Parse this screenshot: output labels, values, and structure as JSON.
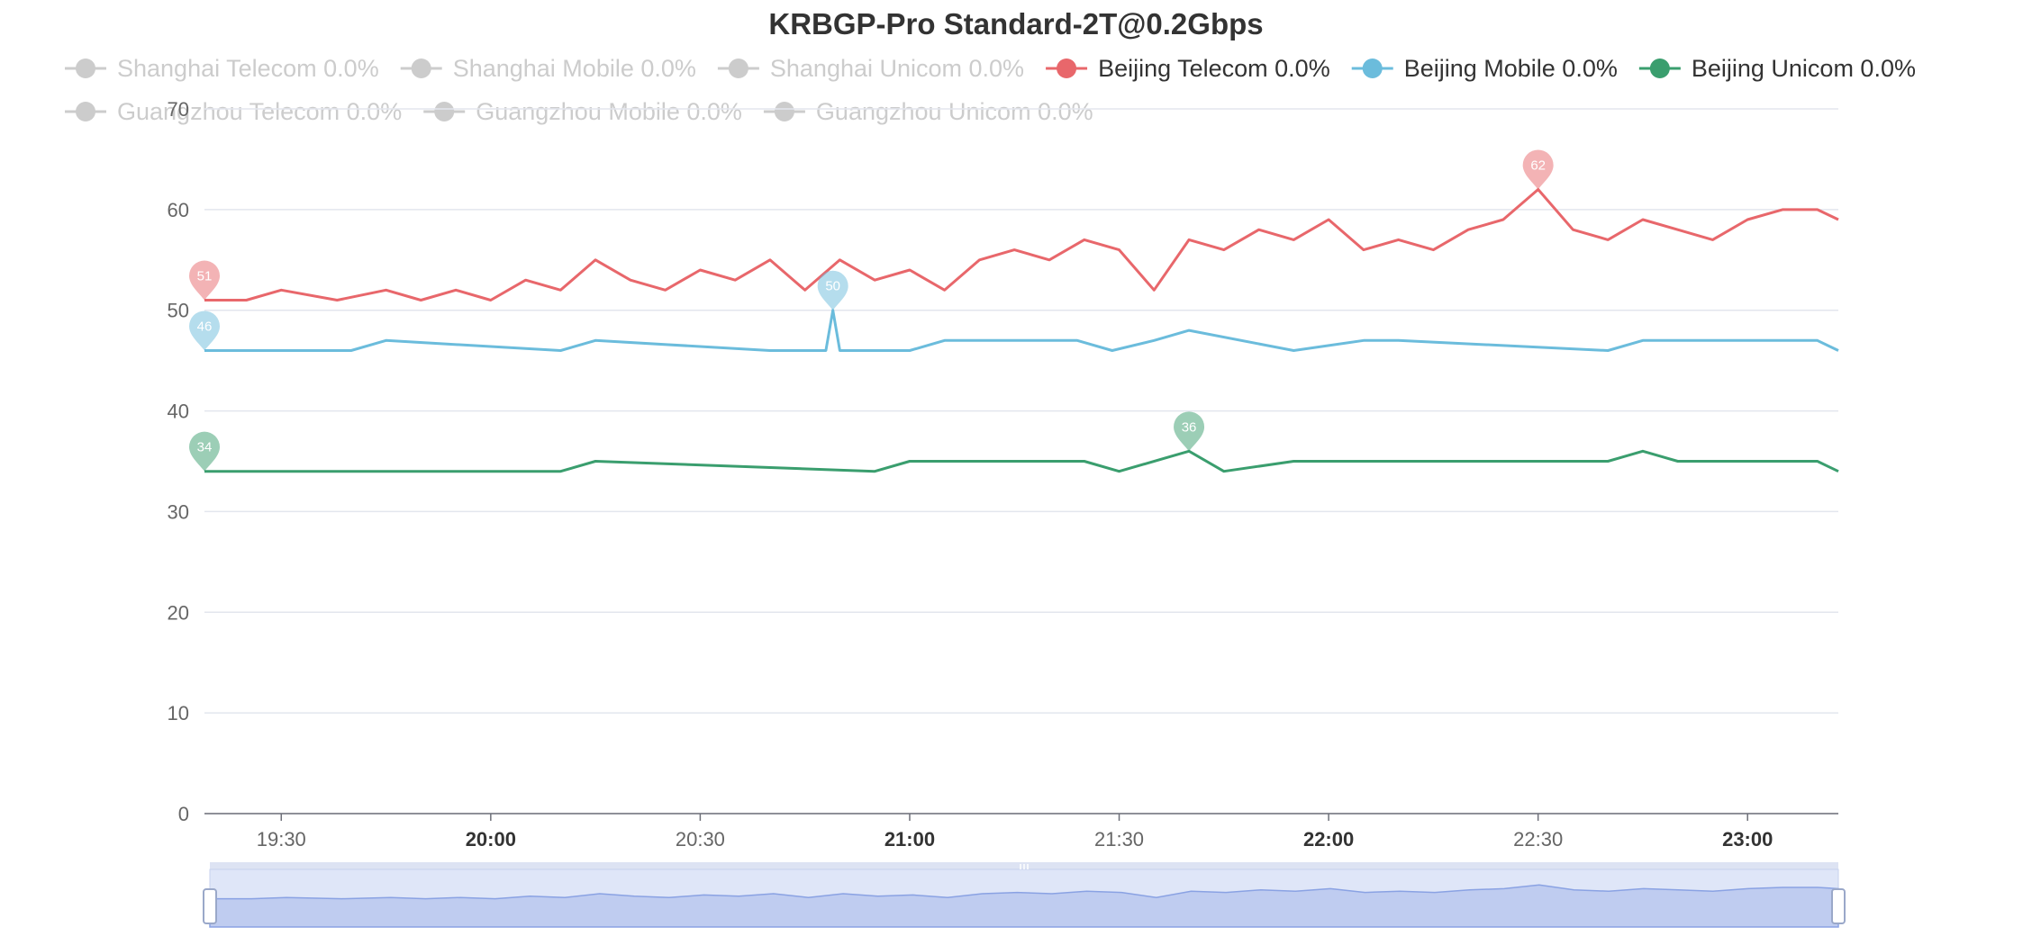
{
  "chart_data": {
    "type": "line",
    "title": "KRBGP-Pro Standard-2T@0.2Gbps",
    "xlabel": "",
    "ylabel": "",
    "ylim": [
      0,
      70
    ],
    "yticks": [
      0,
      10,
      20,
      30,
      40,
      50,
      60,
      70
    ],
    "x_range": [
      "19:19",
      "23:13"
    ],
    "xticks": [
      {
        "label": "19:30",
        "bold": false
      },
      {
        "label": "20:00",
        "bold": true
      },
      {
        "label": "20:30",
        "bold": false
      },
      {
        "label": "21:00",
        "bold": true
      },
      {
        "label": "21:30",
        "bold": false
      },
      {
        "label": "22:00",
        "bold": true
      },
      {
        "label": "22:30",
        "bold": false
      },
      {
        "label": "23:00",
        "bold": true
      }
    ],
    "grid": true,
    "legend_position": "top",
    "legend": [
      {
        "name": "Shanghai Telecom 0.0%",
        "color": "#cccccc",
        "active": false
      },
      {
        "name": "Shanghai Mobile 0.0%",
        "color": "#cccccc",
        "active": false
      },
      {
        "name": "Shanghai Unicom 0.0%",
        "color": "#cccccc",
        "active": false
      },
      {
        "name": "Beijing Telecom 0.0%",
        "color": "#e8676b",
        "active": true
      },
      {
        "name": "Beijing Mobile 0.0%",
        "color": "#6bbcdc",
        "active": true
      },
      {
        "name": "Beijing Unicom 0.0%",
        "color": "#3a9e6e",
        "active": true
      },
      {
        "name": "Guangzhou Telecom 0.0%",
        "color": "#cccccc",
        "active": false
      },
      {
        "name": "Guangzhou Mobile 0.0%",
        "color": "#cccccc",
        "active": false
      },
      {
        "name": "Guangzhou Unicom 0.0%",
        "color": "#cccccc",
        "active": false
      }
    ],
    "series": [
      {
        "name": "Beijing Telecom 0.0%",
        "color": "#e8676b",
        "x": [
          "19:19",
          "19:25",
          "19:30",
          "19:38",
          "19:45",
          "19:50",
          "19:55",
          "20:00",
          "20:05",
          "20:10",
          "20:15",
          "20:20",
          "20:25",
          "20:30",
          "20:35",
          "20:40",
          "20:45",
          "20:50",
          "20:55",
          "21:00",
          "21:05",
          "21:10",
          "21:15",
          "21:20",
          "21:25",
          "21:30",
          "21:35",
          "21:40",
          "21:45",
          "21:50",
          "21:55",
          "22:00",
          "22:05",
          "22:10",
          "22:15",
          "22:20",
          "22:25",
          "22:30",
          "22:35",
          "22:40",
          "22:45",
          "22:50",
          "22:55",
          "23:00",
          "23:05",
          "23:10",
          "23:13"
        ],
        "values": [
          51,
          51,
          52,
          51,
          52,
          51,
          52,
          51,
          53,
          52,
          55,
          53,
          52,
          54,
          53,
          55,
          52,
          55,
          53,
          54,
          52,
          55,
          56,
          55,
          57,
          56,
          52,
          57,
          56,
          58,
          57,
          59,
          56,
          57,
          56,
          58,
          59,
          62,
          58,
          57,
          59,
          58,
          57,
          59,
          60,
          60,
          59
        ],
        "markers": [
          {
            "x": "19:19",
            "value": 51,
            "label": "51"
          },
          {
            "x": "22:30",
            "value": 62,
            "label": "62"
          }
        ]
      },
      {
        "name": "Beijing Mobile 0.0%",
        "color": "#6bbcdc",
        "x": [
          "19:19",
          "19:40",
          "19:45",
          "20:10",
          "20:15",
          "20:40",
          "20:48",
          "20:49",
          "20:50",
          "20:55",
          "21:00",
          "21:05",
          "21:12",
          "21:18",
          "21:24",
          "21:29",
          "21:35",
          "21:40",
          "21:55",
          "22:05",
          "22:10",
          "22:40",
          "22:45",
          "22:50",
          "23:00",
          "23:05",
          "23:10",
          "23:13"
        ],
        "values": [
          46,
          46,
          47,
          46,
          47,
          46,
          46,
          50,
          46,
          46,
          46,
          47,
          47,
          47,
          47,
          46,
          47,
          48,
          46,
          47,
          47,
          46,
          47,
          47,
          47,
          47,
          47,
          46
        ],
        "markers": [
          {
            "x": "19:19",
            "value": 46,
            "label": "46"
          },
          {
            "x": "20:49",
            "value": 50,
            "label": "50"
          }
        ]
      },
      {
        "name": "Beijing Unicom 0.0%",
        "color": "#3a9e6e",
        "x": [
          "19:19",
          "20:10",
          "20:15",
          "20:55",
          "21:00",
          "21:18",
          "21:22",
          "21:25",
          "21:30",
          "21:40",
          "21:45",
          "21:55",
          "22:00",
          "22:05",
          "22:10",
          "22:35",
          "22:40",
          "22:45",
          "22:50",
          "23:00",
          "23:05",
          "23:10",
          "23:13"
        ],
        "values": [
          34,
          34,
          35,
          34,
          35,
          35,
          35,
          35,
          34,
          36,
          34,
          35,
          35,
          35,
          35,
          35,
          35,
          36,
          35,
          35,
          35,
          35,
          34
        ],
        "markers": [
          {
            "x": "19:19",
            "value": 34,
            "label": "34"
          },
          {
            "x": "21:40",
            "value": 36,
            "label": "36"
          }
        ]
      }
    ],
    "data_zoom": {
      "start": 0,
      "end": 100
    }
  }
}
